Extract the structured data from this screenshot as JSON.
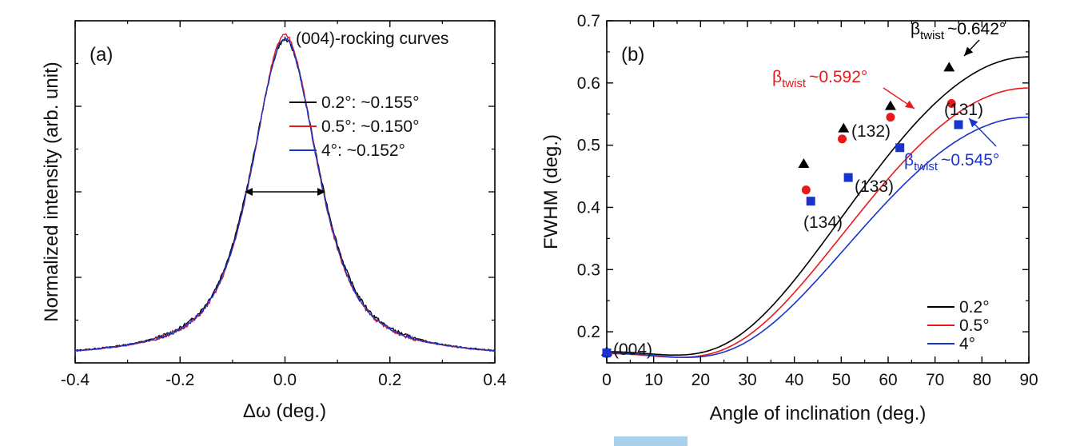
{
  "colors": {
    "s02": "#000000",
    "s05": "#e8191a",
    "s4": "#1a33cc",
    "corner": "#a9d1ee"
  },
  "chart_data": [
    {
      "type": "line",
      "panel_label": "(a)",
      "xlabel": "Δω (deg.)",
      "ylabel": "Normalized intensity (arb. unit)",
      "xlim": [
        -0.4,
        0.4
      ],
      "ylim": [
        0,
        1.0
      ],
      "x_ticks": [
        "-0.4",
        "-0.2",
        "0.0",
        "0.2",
        "0.4"
      ],
      "y_ticklabels": false,
      "legend_title": "(004)-rocking curves",
      "legend_position": "top-right",
      "series": [
        {
          "name": "0.2°: ~0.155°",
          "fwhm": 0.155,
          "peak_x": 0.0,
          "peak_y": 0.944,
          "color": "#000000"
        },
        {
          "name": "0.5°: ~0.150°",
          "fwhm": 0.15,
          "peak_x": 0.0,
          "peak_y": 0.958,
          "color": "#e8191a"
        },
        {
          "name": "4°: ~0.152°",
          "fwhm": 0.152,
          "peak_x": 0.0,
          "peak_y": 0.948,
          "color": "#1a33cc"
        }
      ],
      "baseline": 0.012,
      "fwhm_arrow": {
        "x1": -0.077,
        "x2": 0.077,
        "y": 0.5
      }
    },
    {
      "type": "scatter",
      "panel_label": "(b)",
      "xlabel": "Angle of inclination (deg.)",
      "ylabel": "FWHM (deg.)",
      "xlim": [
        0,
        90
      ],
      "ylim": [
        0.15,
        0.7
      ],
      "x_ticks": [
        "0",
        "10",
        "20",
        "30",
        "40",
        "50",
        "60",
        "70",
        "80",
        "90"
      ],
      "y_ticks": [
        "0.2",
        "0.3",
        "0.4",
        "0.5",
        "0.6",
        "0.7"
      ],
      "legend_position": "bottom-right",
      "series": [
        {
          "name": "0.2°",
          "color": "#000000",
          "marker": "triangle",
          "beta_twist": 0.642,
          "beta_tilt": 0.168,
          "points": [
            [
              0,
              0.168
            ],
            [
              42,
              0.47
            ],
            [
              50.5,
              0.527
            ],
            [
              60.5,
              0.563
            ],
            [
              73,
              0.625
            ]
          ]
        },
        {
          "name": "0.5°",
          "color": "#e8191a",
          "marker": "circle",
          "beta_twist": 0.592,
          "beta_tilt": 0.165,
          "points": [
            [
              0,
              0.165
            ],
            [
              42.5,
              0.428
            ],
            [
              50.2,
              0.51
            ],
            [
              60.5,
              0.545
            ],
            [
              73.5,
              0.567
            ]
          ]
        },
        {
          "name": "4°",
          "color": "#1a33cc",
          "marker": "square",
          "beta_twist": 0.545,
          "beta_tilt": 0.166,
          "points": [
            [
              0,
              0.166
            ],
            [
              43.5,
              0.41
            ],
            [
              51.5,
              0.448
            ],
            [
              62.5,
              0.496
            ],
            [
              75,
              0.533
            ]
          ]
        }
      ],
      "annotations": {
        "twist_02": {
          "sym": "β",
          "sub": "twist",
          "val": "~0.642°"
        },
        "twist_05": {
          "sym": "β",
          "sub": "twist",
          "val": "~0.592°"
        },
        "twist_4": {
          "sym": "β",
          "sub": "twist",
          "val": "~0.545°"
        }
      },
      "reflection_labels": [
        "(004)",
        "(134)",
        "(133)",
        "(132)",
        "(131)"
      ]
    }
  ]
}
